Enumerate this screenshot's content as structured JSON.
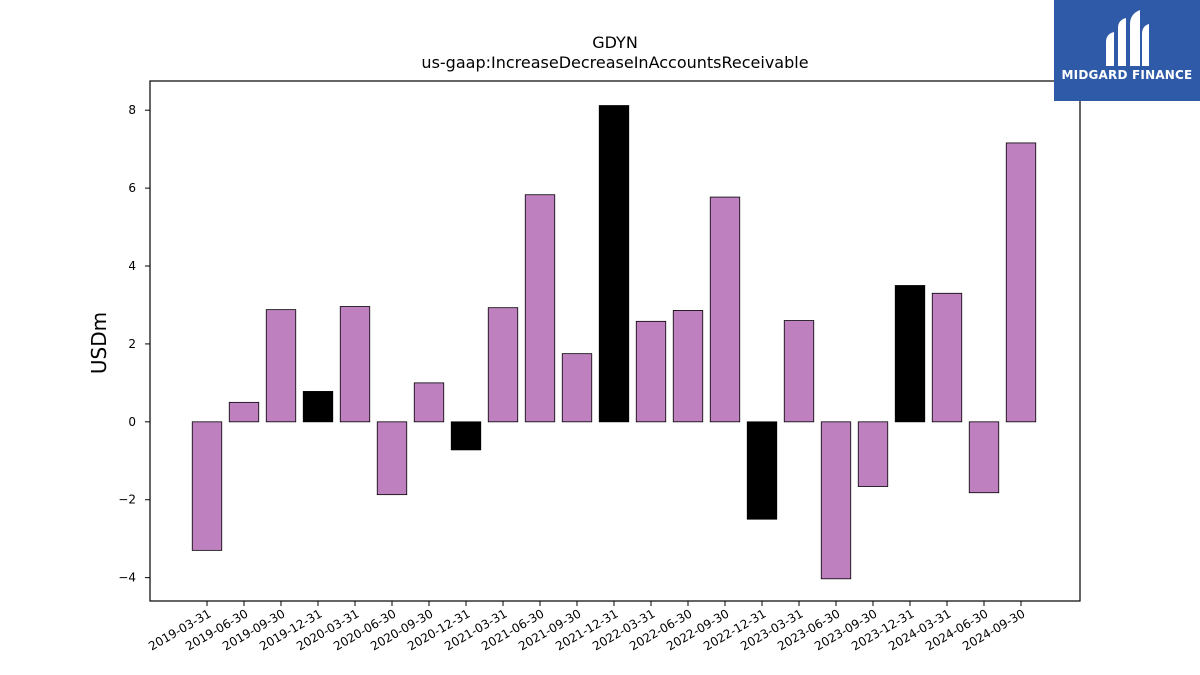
{
  "chart_data": {
    "type": "bar",
    "title": "GDYN",
    "subtitle": "us-gaap:IncreaseDecreaseInAccountsReceivable",
    "xlabel": "",
    "ylabel": "USDm",
    "ylim": [
      -4.6,
      8.75
    ],
    "yticks": [
      -4,
      -2,
      0,
      2,
      4,
      6,
      8
    ],
    "ytick_labels": [
      "−4",
      "−2",
      "0",
      "2",
      "4",
      "6",
      "8"
    ],
    "grid": false,
    "categories": [
      "2019-03-31",
      "2019-06-30",
      "2019-09-30",
      "2019-12-31",
      "2020-03-31",
      "2020-06-30",
      "2020-09-30",
      "2020-12-31",
      "2021-03-31",
      "2021-06-30",
      "2021-09-30",
      "2021-12-31",
      "2022-03-31",
      "2022-06-30",
      "2022-09-30",
      "2022-12-31",
      "2023-03-31",
      "2023-06-30",
      "2023-09-30",
      "2023-12-31",
      "2024-03-31",
      "2024-06-30",
      "2024-09-30"
    ],
    "values": [
      -3.3,
      0.5,
      2.88,
      0.78,
      2.96,
      -1.87,
      1.0,
      -0.72,
      2.93,
      5.83,
      1.75,
      8.12,
      2.58,
      2.86,
      5.77,
      -2.5,
      2.6,
      -4.03,
      -1.66,
      3.5,
      3.3,
      -1.82,
      7.16
    ],
    "highlighted": [
      false,
      false,
      false,
      true,
      false,
      false,
      false,
      true,
      false,
      false,
      false,
      true,
      false,
      false,
      false,
      true,
      false,
      false,
      false,
      true,
      false,
      false,
      false
    ],
    "colors": {
      "bar": "#bf80bf",
      "highlight": "#000000",
      "edge": "#000000"
    }
  },
  "logo": {
    "text": "MIDGARD FINANCE",
    "background": "#2f5aa8"
  }
}
